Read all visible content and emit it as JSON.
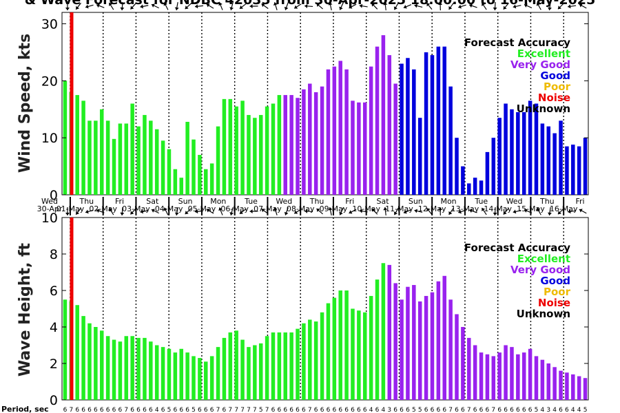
{
  "title": "& Wave Forecast for NDBC 42035 from 30-Apr-2025 18:00:00 to 16-May-2025",
  "accuracy_legend": {
    "title": "Forecast Accuracy",
    "items": [
      {
        "label": "Excellent",
        "color": "#22ee22"
      },
      {
        "label": "Very Good",
        "color": "#9922ee"
      },
      {
        "label": "Good",
        "color": "#0000dd"
      },
      {
        "label": "Poor",
        "color": "#eebb00"
      },
      {
        "label": "Noise",
        "color": "#ee0000"
      },
      {
        "label": "Unknown",
        "color": "#000000"
      }
    ]
  },
  "day_labels": [
    {
      "dow": "Wed",
      "date": "30-Apr"
    },
    {
      "dow": "Thu",
      "date": "01-May"
    },
    {
      "dow": "Fri",
      "date": "02-May"
    },
    {
      "dow": "Sat",
      "date": "03-May"
    },
    {
      "dow": "Sun",
      "date": "04-May"
    },
    {
      "dow": "Mon",
      "date": "05-May"
    },
    {
      "dow": "Tue",
      "date": "06-May"
    },
    {
      "dow": "Wed",
      "date": "07-May"
    },
    {
      "dow": "Thu",
      "date": "08-May"
    },
    {
      "dow": "Fri",
      "date": "09-May"
    },
    {
      "dow": "Sat",
      "date": "10-May"
    },
    {
      "dow": "Sun",
      "date": "11-May"
    },
    {
      "dow": "Mon",
      "date": "12-May"
    },
    {
      "dow": "Tue",
      "date": "13-May"
    },
    {
      "dow": "Wed",
      "date": "14-May"
    },
    {
      "dow": "Thu",
      "date": "15-May"
    },
    {
      "dow": "Fri",
      "date": "16-May"
    }
  ],
  "period_label": "Period, sec",
  "period_values": [
    6,
    7,
    6,
    6,
    6,
    6,
    6,
    6,
    6,
    6,
    7,
    6,
    6,
    6,
    6,
    4,
    6,
    5,
    6,
    6,
    6,
    5,
    6,
    6,
    6,
    7,
    6,
    7,
    7,
    7,
    7,
    7,
    5,
    7,
    6,
    6,
    6,
    6,
    6,
    6,
    7,
    6,
    6,
    6,
    6,
    6,
    6,
    6,
    6,
    6,
    4,
    6,
    4,
    3,
    6,
    6,
    6,
    5,
    5,
    6,
    6,
    6,
    6,
    7,
    6,
    6,
    7,
    6,
    6,
    6,
    7,
    6,
    6,
    6,
    6,
    6,
    6,
    5,
    4,
    3,
    4,
    6,
    6,
    4,
    4,
    5
  ],
  "chart_data": [
    {
      "type": "bar",
      "name": "wind",
      "ylabel": "Wind Speed, kts",
      "ylim": [
        0,
        32
      ],
      "yticks": [
        0,
        10,
        20,
        30
      ],
      "x_start": "30-Apr-2025 18:00",
      "x_end": "16-May-2025 18:00",
      "step_hours": 3,
      "values": [
        20.0,
        18.0,
        17.5,
        16.5,
        13.0,
        13.0,
        15.0,
        13.0,
        9.8,
        12.5,
        12.5,
        16.0,
        12.0,
        14.0,
        13.0,
        11.5,
        9.5,
        8.0,
        4.5,
        3.0,
        12.8,
        9.7,
        7.0,
        4.5,
        5.5,
        12.0,
        16.8,
        16.8,
        15.5,
        16.5,
        14.0,
        13.5,
        14.0,
        15.5,
        16.0,
        17.5,
        17.5,
        17.5,
        17.0,
        18.5,
        19.5,
        18.0,
        19.0,
        22.0,
        22.5,
        23.5,
        22.0,
        16.5,
        16.2,
        16.2,
        22.5,
        26.0,
        28.0,
        24.5,
        19.5,
        23.0,
        24.0,
        22.0,
        13.5,
        25.0,
        24.5,
        26.0,
        26.0,
        19.0,
        10.0,
        5.0,
        2.0,
        3.0,
        2.5,
        7.5,
        10.0,
        13.5,
        16.0,
        15.0,
        14.5,
        14.5,
        16.5,
        16.0,
        12.5,
        12.0,
        10.8,
        13.0,
        8.5,
        8.8,
        8.5,
        10.0
      ],
      "accuracy": [
        "Excellent",
        "Excellent",
        "Excellent",
        "Excellent",
        "Excellent",
        "Excellent",
        "Excellent",
        "Excellent",
        "Excellent",
        "Excellent",
        "Excellent",
        "Excellent",
        "Excellent",
        "Excellent",
        "Excellent",
        "Excellent",
        "Excellent",
        "Excellent",
        "Excellent",
        "Excellent",
        "Excellent",
        "Excellent",
        "Excellent",
        "Excellent",
        "Excellent",
        "Excellent",
        "Excellent",
        "Excellent",
        "Excellent",
        "Excellent",
        "Excellent",
        "Excellent",
        "Excellent",
        "Excellent",
        "Excellent",
        "Excellent",
        "Very Good",
        "Very Good",
        "Very Good",
        "Very Good",
        "Very Good",
        "Very Good",
        "Very Good",
        "Very Good",
        "Very Good",
        "Very Good",
        "Very Good",
        "Very Good",
        "Very Good",
        "Very Good",
        "Very Good",
        "Very Good",
        "Very Good",
        "Very Good",
        "Very Good",
        "Good",
        "Good",
        "Good",
        "Good",
        "Good",
        "Good",
        "Good",
        "Good",
        "Good",
        "Good",
        "Good",
        "Good",
        "Good",
        "Good",
        "Good",
        "Good",
        "Good",
        "Good",
        "Good",
        "Good",
        "Good",
        "Good",
        "Good",
        "Good",
        "Good",
        "Good",
        "Good",
        "Good",
        "Good",
        "Good",
        "Good"
      ]
    },
    {
      "type": "bar",
      "name": "wave",
      "ylabel": "Wave Height, ft",
      "ylim": [
        0,
        10
      ],
      "yticks": [
        0,
        2,
        4,
        6,
        8,
        10
      ],
      "x_start": "30-Apr-2025 18:00",
      "x_end": "16-May-2025 18:00",
      "step_hours": 3,
      "values": [
        5.5,
        5.4,
        5.2,
        4.6,
        4.2,
        4.0,
        3.8,
        3.5,
        3.3,
        3.2,
        3.5,
        3.5,
        3.4,
        3.4,
        3.2,
        3.0,
        2.9,
        2.8,
        2.6,
        2.8,
        2.6,
        2.4,
        2.3,
        2.1,
        2.4,
        2.9,
        3.4,
        3.7,
        3.8,
        3.3,
        2.9,
        3.0,
        3.1,
        3.5,
        3.7,
        3.7,
        3.7,
        3.7,
        3.9,
        4.2,
        4.4,
        4.3,
        4.8,
        5.3,
        5.6,
        6.0,
        6.0,
        5.0,
        4.9,
        4.8,
        5.7,
        6.6,
        7.5,
        7.4,
        6.4,
        5.5,
        6.2,
        6.3,
        5.4,
        5.7,
        5.9,
        6.5,
        6.8,
        5.5,
        4.7,
        4.0,
        3.4,
        3.0,
        2.6,
        2.5,
        2.4,
        2.6,
        3.0,
        2.9,
        2.5,
        2.6,
        2.8,
        2.4,
        2.2,
        2.0,
        1.8,
        1.6,
        1.5,
        1.4,
        1.3,
        1.2
      ],
      "accuracy": [
        "Excellent",
        "Excellent",
        "Excellent",
        "Excellent",
        "Excellent",
        "Excellent",
        "Excellent",
        "Excellent",
        "Excellent",
        "Excellent",
        "Excellent",
        "Excellent",
        "Excellent",
        "Excellent",
        "Excellent",
        "Excellent",
        "Excellent",
        "Excellent",
        "Excellent",
        "Excellent",
        "Excellent",
        "Excellent",
        "Excellent",
        "Excellent",
        "Excellent",
        "Excellent",
        "Excellent",
        "Excellent",
        "Excellent",
        "Excellent",
        "Excellent",
        "Excellent",
        "Excellent",
        "Excellent",
        "Excellent",
        "Excellent",
        "Excellent",
        "Excellent",
        "Excellent",
        "Excellent",
        "Excellent",
        "Excellent",
        "Excellent",
        "Excellent",
        "Excellent",
        "Excellent",
        "Excellent",
        "Excellent",
        "Excellent",
        "Excellent",
        "Excellent",
        "Excellent",
        "Excellent",
        "Very Good",
        "Very Good",
        "Very Good",
        "Very Good",
        "Very Good",
        "Very Good",
        "Very Good",
        "Very Good",
        "Very Good",
        "Very Good",
        "Very Good",
        "Very Good",
        "Very Good",
        "Very Good",
        "Very Good",
        "Very Good",
        "Very Good",
        "Very Good",
        "Very Good",
        "Very Good",
        "Very Good",
        "Very Good",
        "Very Good",
        "Very Good",
        "Very Good",
        "Very Good",
        "Very Good",
        "Very Good",
        "Very Good",
        "Very Good",
        "Very Good",
        "Very Good",
        "Very Good"
      ]
    }
  ]
}
